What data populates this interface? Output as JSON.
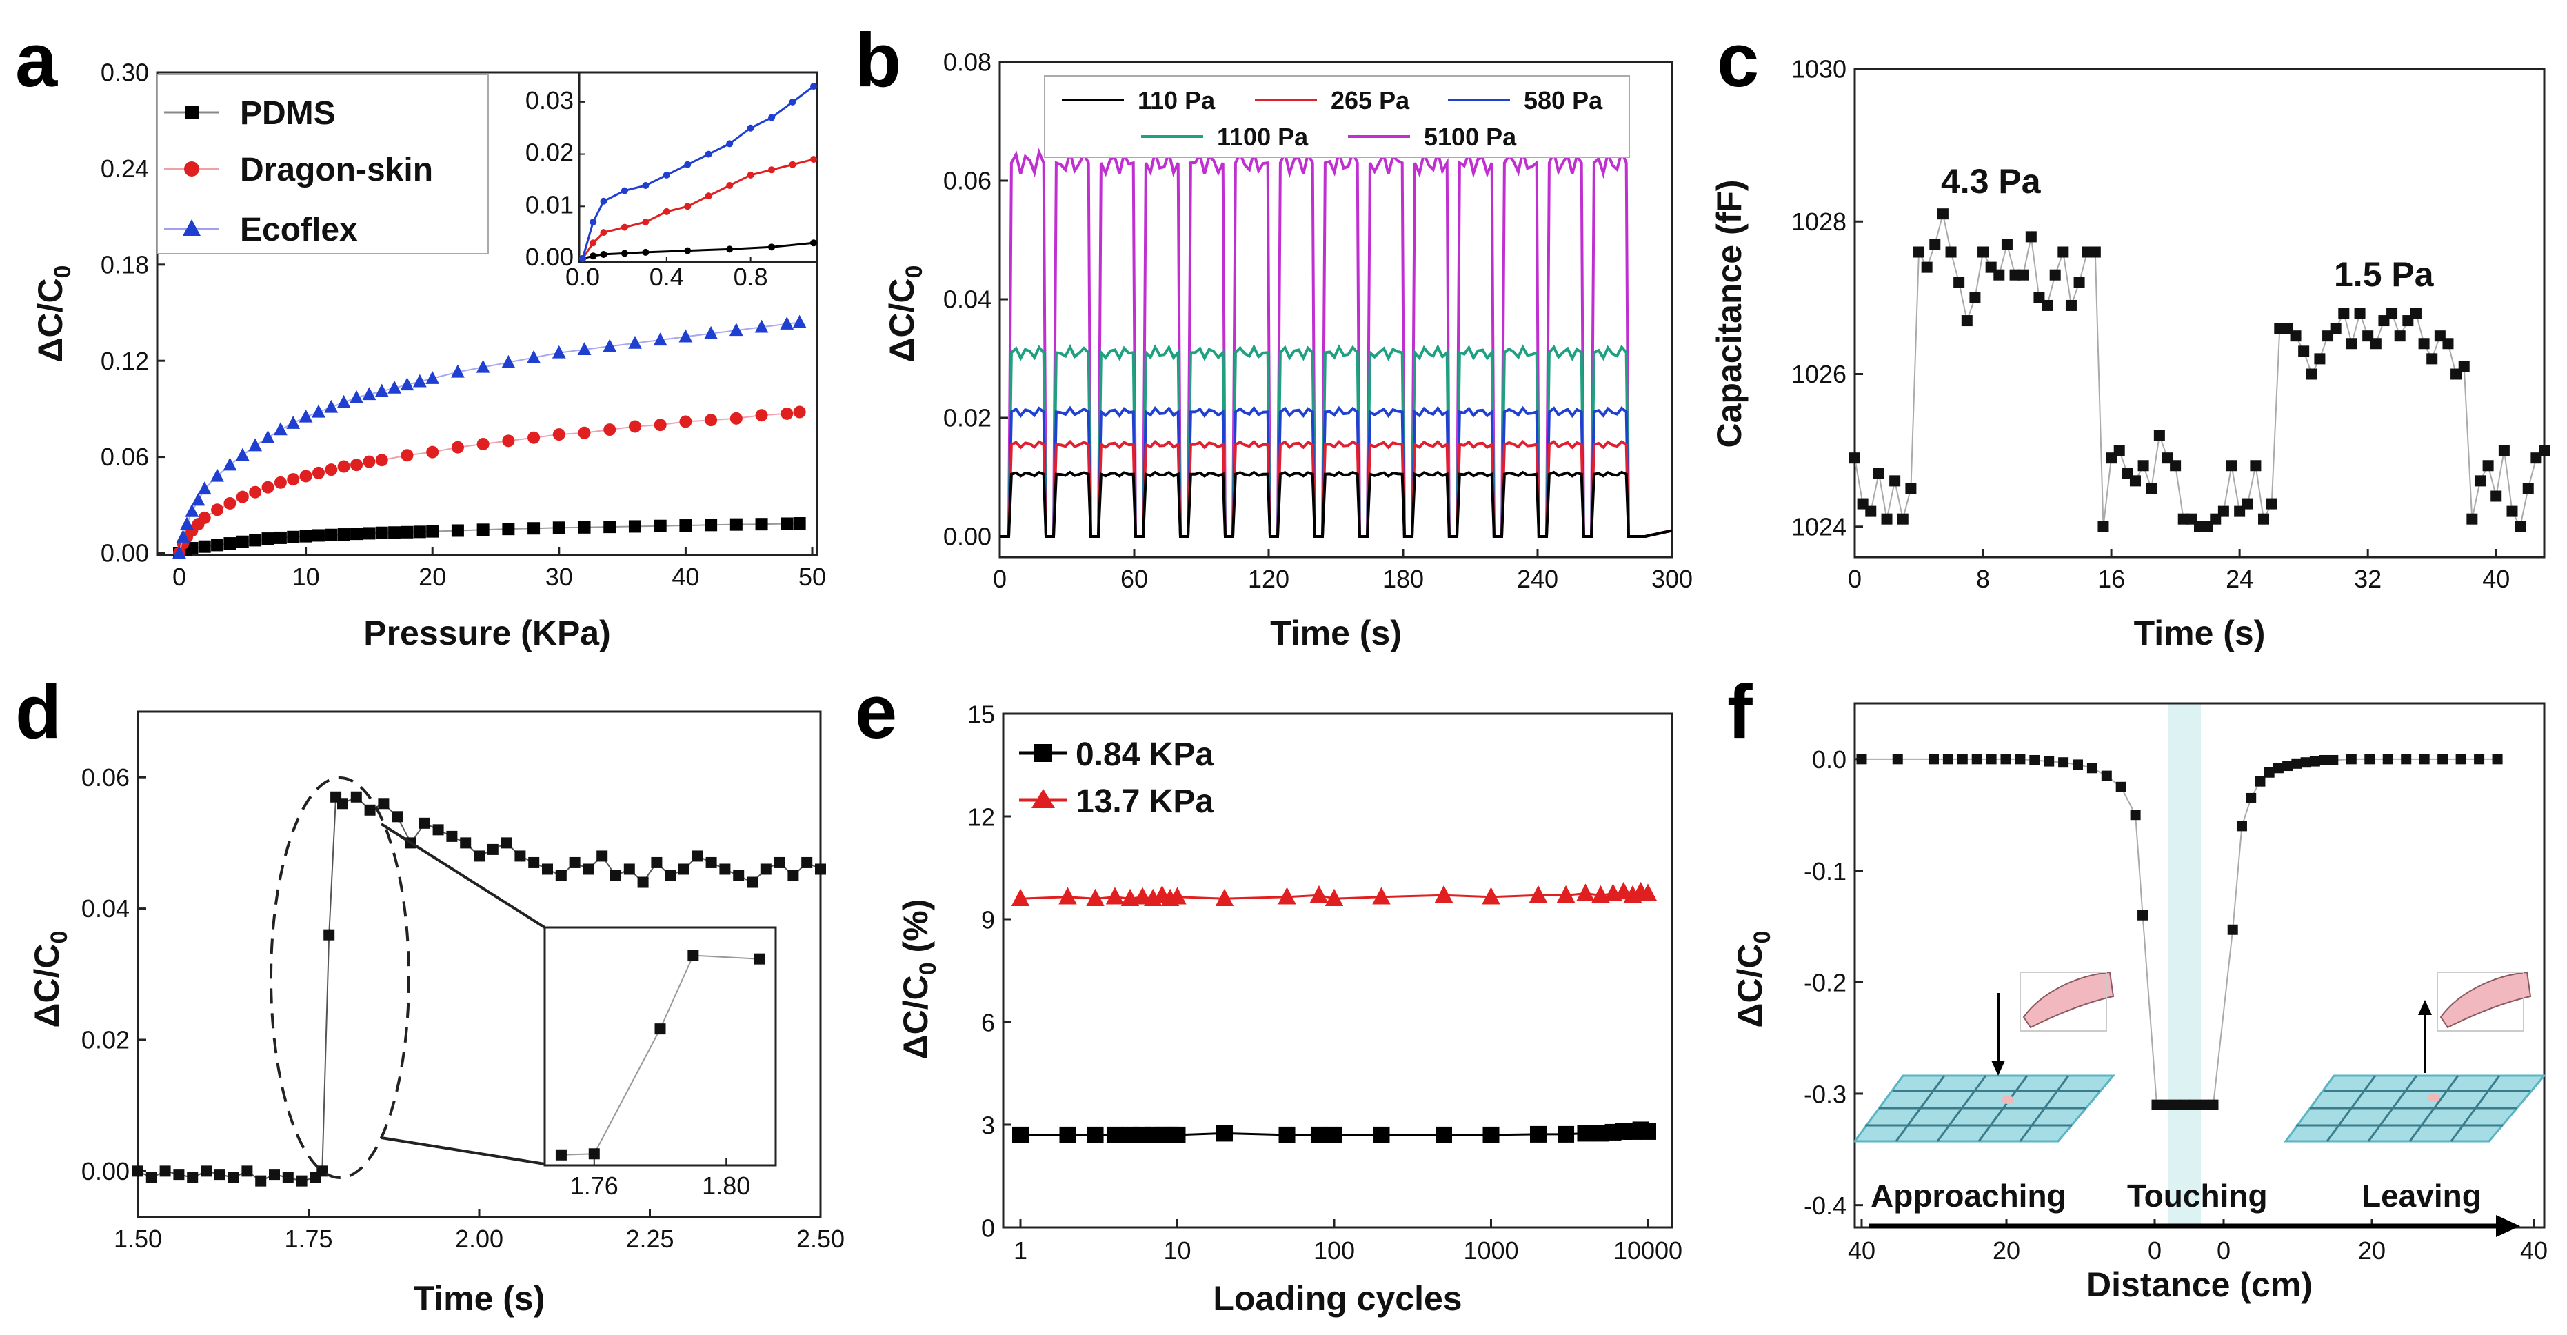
{
  "chart_data": [
    {
      "panel": "a",
      "type": "line",
      "xlabel": "Pressure (KPa)",
      "ylabel_parts": [
        "ΔC/C",
        "0"
      ],
      "xlim": [
        0,
        50
      ],
      "ylim": [
        0,
        0.3
      ],
      "xticks": [
        "0",
        "10",
        "20",
        "30",
        "40",
        "50"
      ],
      "yticks": [
        "0.00",
        "0.06",
        "0.12",
        "0.18",
        "0.24",
        "0.30"
      ],
      "legend": [
        "PDMS",
        "Dragon-skin",
        "Ecoflex"
      ],
      "series": [
        {
          "name": "PDMS",
          "color": "#000000",
          "marker": "square",
          "x": [
            0,
            0.5,
            1,
            2,
            3,
            4,
            5,
            6,
            7,
            8,
            9,
            10,
            11,
            12,
            13,
            14,
            15,
            16,
            17,
            18,
            19,
            20,
            22,
            24,
            26,
            28,
            30,
            32,
            34,
            36,
            38,
            40,
            42,
            44,
            46,
            48,
            49
          ],
          "y": [
            0,
            0.002,
            0.003,
            0.004,
            0.005,
            0.006,
            0.007,
            0.008,
            0.009,
            0.0095,
            0.01,
            0.0105,
            0.011,
            0.0113,
            0.0116,
            0.012,
            0.0123,
            0.0126,
            0.0128,
            0.013,
            0.0132,
            0.0135,
            0.014,
            0.0145,
            0.015,
            0.0154,
            0.0158,
            0.016,
            0.0163,
            0.0166,
            0.0169,
            0.0172,
            0.0175,
            0.0178,
            0.018,
            0.0183,
            0.0185
          ]
        },
        {
          "name": "Dragon-skin",
          "color": "#e02020",
          "marker": "circle",
          "x": [
            0,
            0.3,
            0.6,
            1,
            1.5,
            2,
            3,
            4,
            5,
            6,
            7,
            8,
            9,
            10,
            11,
            12,
            13,
            14,
            15,
            16,
            18,
            20,
            22,
            24,
            26,
            28,
            30,
            32,
            34,
            36,
            38,
            40,
            42,
            44,
            46,
            48,
            49
          ],
          "y": [
            0,
            0.006,
            0.01,
            0.014,
            0.018,
            0.022,
            0.027,
            0.031,
            0.035,
            0.038,
            0.041,
            0.044,
            0.046,
            0.048,
            0.05,
            0.052,
            0.054,
            0.055,
            0.057,
            0.058,
            0.061,
            0.063,
            0.066,
            0.068,
            0.07,
            0.072,
            0.074,
            0.075,
            0.077,
            0.079,
            0.08,
            0.082,
            0.083,
            0.084,
            0.086,
            0.087,
            0.088
          ]
        },
        {
          "name": "Ecoflex",
          "color": "#1f3fd0",
          "marker": "triangle",
          "x": [
            0,
            0.3,
            0.6,
            1,
            1.5,
            2,
            3,
            4,
            5,
            6,
            7,
            8,
            9,
            10,
            11,
            12,
            13,
            14,
            15,
            16,
            17,
            18,
            19,
            20,
            22,
            24,
            26,
            28,
            30,
            32,
            34,
            36,
            38,
            40,
            42,
            44,
            46,
            48,
            49
          ],
          "y": [
            0,
            0.01,
            0.018,
            0.026,
            0.033,
            0.04,
            0.048,
            0.055,
            0.061,
            0.067,
            0.072,
            0.077,
            0.081,
            0.085,
            0.088,
            0.091,
            0.094,
            0.097,
            0.099,
            0.101,
            0.103,
            0.105,
            0.107,
            0.109,
            0.113,
            0.116,
            0.119,
            0.122,
            0.125,
            0.127,
            0.129,
            0.131,
            0.133,
            0.135,
            0.137,
            0.139,
            0.141,
            0.143,
            0.144
          ]
        }
      ],
      "inset": {
        "xlim": [
          0,
          1.1
        ],
        "ylim": [
          0,
          0.035
        ],
        "xticks": [
          "0.0",
          "0.4",
          "0.8"
        ],
        "yticks": [
          "0.00",
          "0.01",
          "0.02",
          "0.03"
        ],
        "series": [
          {
            "name": "PDMS",
            "color": "#000000",
            "x": [
              0,
              0.05,
              0.1,
              0.2,
              0.3,
              0.5,
              0.7,
              0.9,
              1.1
            ],
            "y": [
              0,
              0.0005,
              0.0008,
              0.001,
              0.0012,
              0.0015,
              0.0018,
              0.0022,
              0.003
            ]
          },
          {
            "name": "Dragon-skin",
            "color": "#e02020",
            "x": [
              0,
              0.05,
              0.1,
              0.2,
              0.3,
              0.4,
              0.5,
              0.6,
              0.7,
              0.8,
              0.9,
              1.0,
              1.1
            ],
            "y": [
              0,
              0.003,
              0.005,
              0.006,
              0.007,
              0.009,
              0.01,
              0.012,
              0.014,
              0.016,
              0.017,
              0.018,
              0.019
            ]
          },
          {
            "name": "Ecoflex",
            "color": "#1f3fd0",
            "x": [
              0,
              0.05,
              0.1,
              0.2,
              0.3,
              0.4,
              0.5,
              0.6,
              0.7,
              0.8,
              0.9,
              1.0,
              1.1
            ],
            "y": [
              0,
              0.007,
              0.011,
              0.013,
              0.014,
              0.016,
              0.018,
              0.02,
              0.022,
              0.025,
              0.027,
              0.03,
              0.033
            ]
          }
        ]
      }
    },
    {
      "panel": "b",
      "type": "line",
      "xlabel": "Time (s)",
      "ylabel_parts": [
        "ΔC/C",
        "0"
      ],
      "xlim": [
        0,
        300
      ],
      "ylim": [
        0,
        0.08
      ],
      "xticks": [
        "0",
        "60",
        "120",
        "180",
        "240",
        "300"
      ],
      "yticks": [
        "0.00",
        "0.02",
        "0.04",
        "0.06",
        "0.08"
      ],
      "legend_items": [
        "110 Pa",
        "265 Pa",
        "580 Pa",
        "1100 Pa",
        "5100 Pa"
      ],
      "cycles": 14,
      "period_s": 20,
      "first_rise_s": 4,
      "end_s": 288,
      "series": [
        {
          "name": "110 Pa",
          "color": "#000000",
          "level": 0.0105
        },
        {
          "name": "265 Pa",
          "color": "#e02030",
          "level": 0.0155
        },
        {
          "name": "580 Pa",
          "color": "#2040d0",
          "level": 0.021
        },
        {
          "name": "1100 Pa",
          "color": "#20a080",
          "level": 0.031
        },
        {
          "name": "5100 Pa",
          "color": "#c030d0",
          "level": 0.063
        }
      ]
    },
    {
      "panel": "c",
      "type": "line",
      "xlabel": "Time (s)",
      "ylabel": "Capacitance (fF)",
      "xlim": [
        0,
        43
      ],
      "ylim": [
        1023.6,
        1030
      ],
      "xticks": [
        "0",
        "8",
        "16",
        "24",
        "32",
        "40"
      ],
      "yticks": [
        "1024",
        "1026",
        "1028",
        "1030"
      ],
      "annotations": [
        "4.3 Pa",
        "1.5 Pa"
      ],
      "x": [
        0,
        0.5,
        1,
        1.5,
        2,
        2.5,
        3,
        3.5,
        4,
        4.5,
        5,
        5.5,
        6,
        6.5,
        7,
        7.5,
        8,
        8.5,
        9,
        9.5,
        10,
        10.5,
        11,
        11.5,
        12,
        12.5,
        13,
        13.5,
        14,
        14.5,
        15,
        15.5,
        16,
        16.5,
        17,
        17.5,
        18,
        18.5,
        19,
        19.5,
        20,
        20.5,
        21,
        21.5,
        22,
        22.5,
        23,
        23.5,
        24,
        24.5,
        25,
        25.5,
        26,
        26.5,
        27,
        27.5,
        28,
        28.5,
        29,
        29.5,
        30,
        30.5,
        31,
        31.5,
        32,
        32.5,
        33,
        33.5,
        34,
        34.5,
        35,
        35.5,
        36,
        36.5,
        37,
        37.5,
        38,
        38.5,
        39,
        39.5,
        40,
        40.5,
        41,
        41.5,
        42,
        42.5,
        43
      ],
      "y": [
        1024.9,
        1024.3,
        1024.2,
        1024.7,
        1024.1,
        1024.6,
        1024.1,
        1024.5,
        1027.6,
        1027.4,
        1027.7,
        1028.1,
        1027.6,
        1027.2,
        1026.7,
        1027.0,
        1027.6,
        1027.4,
        1027.3,
        1027.7,
        1027.3,
        1027.3,
        1027.8,
        1027.0,
        1026.9,
        1027.3,
        1027.6,
        1026.9,
        1027.2,
        1027.6,
        1027.6,
        1024.0,
        1024.9,
        1025.0,
        1024.7,
        1024.6,
        1024.8,
        1024.5,
        1025.2,
        1024.9,
        1024.8,
        1024.1,
        1024.1,
        1024.0,
        1024.0,
        1024.1,
        1024.2,
        1024.8,
        1024.2,
        1024.3,
        1024.8,
        1024.1,
        1024.3,
        1026.6,
        1026.6,
        1026.5,
        1026.3,
        1026.0,
        1026.2,
        1026.5,
        1026.6,
        1026.8,
        1026.4,
        1026.8,
        1026.5,
        1026.4,
        1026.7,
        1026.8,
        1026.5,
        1026.7,
        1026.8,
        1026.4,
        1026.2,
        1026.5,
        1026.4,
        1026.0,
        1026.1,
        1024.1,
        1024.6,
        1024.8,
        1024.4,
        1025.0,
        1024.2,
        1024.0,
        1024.5,
        1024.9,
        1025.0
      ]
    },
    {
      "panel": "d",
      "type": "line",
      "xlabel": "Time (s)",
      "ylabel_parts": [
        "ΔC/C",
        "0"
      ],
      "xlim": [
        1.5,
        2.5
      ],
      "ylim": [
        -0.007,
        0.07
      ],
      "xticks": [
        "1.50",
        "1.75",
        "2.00",
        "2.25",
        "2.50"
      ],
      "yticks": [
        "0.00",
        "0.02",
        "0.04",
        "0.06"
      ],
      "x": [
        1.5,
        1.52,
        1.54,
        1.56,
        1.58,
        1.6,
        1.62,
        1.64,
        1.66,
        1.68,
        1.7,
        1.72,
        1.74,
        1.76,
        1.77,
        1.78,
        1.79,
        1.8,
        1.82,
        1.84,
        1.86,
        1.88,
        1.9,
        1.92,
        1.94,
        1.96,
        1.98,
        2.0,
        2.02,
        2.04,
        2.06,
        2.08,
        2.1,
        2.12,
        2.14,
        2.16,
        2.18,
        2.2,
        2.22,
        2.24,
        2.26,
        2.28,
        2.3,
        2.32,
        2.34,
        2.36,
        2.38,
        2.4,
        2.42,
        2.44,
        2.46,
        2.48,
        2.5
      ],
      "y": [
        0.0,
        -0.001,
        0.0,
        -0.0005,
        -0.001,
        0.0,
        -0.0005,
        -0.001,
        0.0,
        -0.0015,
        -0.0005,
        -0.001,
        -0.0015,
        -0.001,
        0.0,
        0.036,
        0.057,
        0.056,
        0.057,
        0.055,
        0.056,
        0.054,
        0.05,
        0.053,
        0.052,
        0.051,
        0.05,
        0.048,
        0.049,
        0.05,
        0.048,
        0.047,
        0.046,
        0.045,
        0.047,
        0.046,
        0.048,
        0.045,
        0.046,
        0.044,
        0.047,
        0.045,
        0.046,
        0.048,
        0.047,
        0.046,
        0.045,
        0.044,
        0.046,
        0.047,
        0.045,
        0.047,
        0.046
      ],
      "inset": {
        "xticks": [
          "1.76",
          "1.80"
        ],
        "x": [
          1.75,
          1.76,
          1.78,
          1.79,
          1.81
        ],
        "y": [
          0.0,
          0.0003,
          0.036,
          0.057,
          0.056
        ]
      }
    },
    {
      "panel": "e",
      "type": "line",
      "xlabel": "Loading cycles",
      "ylabel_parts": [
        "ΔC/C",
        "0",
        " (%)"
      ],
      "xscale": "log",
      "xlim": [
        1,
        10000
      ],
      "ylim": [
        0,
        15
      ],
      "xticks": [
        "1",
        "10",
        "100",
        "1000",
        "10000"
      ],
      "yticks": [
        "0",
        "3",
        "6",
        "9",
        "12",
        "15"
      ],
      "legend": [
        "0.84 KPa",
        "13.7 KPa"
      ],
      "series": [
        {
          "name": "0.84 KPa",
          "color": "#000000",
          "marker": "square",
          "x": [
            1,
            2,
            3,
            4,
            5,
            6,
            7,
            8,
            9,
            10,
            20,
            50,
            80,
            100,
            200,
            500,
            1000,
            2000,
            3000,
            4000,
            5000,
            6000,
            7000,
            8000,
            9000,
            10000
          ],
          "y": [
            2.7,
            2.7,
            2.7,
            2.7,
            2.7,
            2.7,
            2.7,
            2.7,
            2.7,
            2.7,
            2.75,
            2.7,
            2.7,
            2.7,
            2.7,
            2.7,
            2.7,
            2.72,
            2.72,
            2.75,
            2.75,
            2.78,
            2.8,
            2.8,
            2.85,
            2.8
          ]
        },
        {
          "name": "13.7 KPa",
          "color": "#e02020",
          "marker": "triangle",
          "x": [
            1,
            2,
            3,
            4,
            5,
            6,
            7,
            8,
            9,
            10,
            20,
            50,
            80,
            100,
            200,
            500,
            1000,
            2000,
            3000,
            4000,
            5000,
            6000,
            7000,
            8000,
            9000,
            10000
          ],
          "y": [
            9.6,
            9.65,
            9.6,
            9.65,
            9.6,
            9.65,
            9.6,
            9.7,
            9.6,
            9.65,
            9.6,
            9.65,
            9.7,
            9.6,
            9.65,
            9.7,
            9.65,
            9.7,
            9.7,
            9.75,
            9.7,
            9.75,
            9.8,
            9.7,
            9.8,
            9.75
          ]
        }
      ]
    },
    {
      "panel": "f",
      "type": "line",
      "xlabel": "Distance (cm)",
      "ylabel_parts": [
        "ΔC/C",
        "0"
      ],
      "xlim": [
        -40,
        40
      ],
      "ylim": [
        -0.42,
        0.05
      ],
      "xticks": [
        "40",
        "20",
        "0",
        "0",
        "20",
        "40"
      ],
      "yticks": [
        "0.0",
        "-0.1",
        "-0.2",
        "-0.3",
        "-0.4"
      ],
      "phase_labels": [
        "Approaching",
        "Touching",
        "Leaving"
      ],
      "x": [
        -40,
        -35,
        -30,
        -28,
        -26,
        -24,
        -22,
        -20,
        -18,
        -16,
        -14,
        -12,
        -10,
        -8,
        -6,
        -4,
        -2,
        -1,
        0,
        1,
        2,
        3,
        4,
        5,
        6,
        7,
        8,
        9,
        10,
        11,
        12,
        13,
        14,
        15,
        16,
        17,
        18,
        20,
        22,
        24,
        26,
        28,
        30,
        32,
        34,
        36
      ],
      "y": [
        0,
        0,
        0,
        0,
        0,
        0,
        0,
        0,
        0,
        -0.001,
        -0.002,
        -0.003,
        -0.005,
        -0.008,
        -0.015,
        -0.025,
        -0.05,
        -0.14,
        -0.31,
        -0.31,
        -0.31,
        -0.31,
        -0.31,
        -0.31,
        -0.31,
        -0.153,
        -0.06,
        -0.035,
        -0.02,
        -0.012,
        -0.008,
        -0.006,
        -0.004,
        -0.003,
        -0.002,
        -0.001,
        -0.001,
        0,
        0,
        0,
        0,
        0,
        0,
        0,
        0,
        0
      ]
    }
  ],
  "panel_labels": [
    "a",
    "b",
    "c",
    "d",
    "e",
    "f"
  ]
}
